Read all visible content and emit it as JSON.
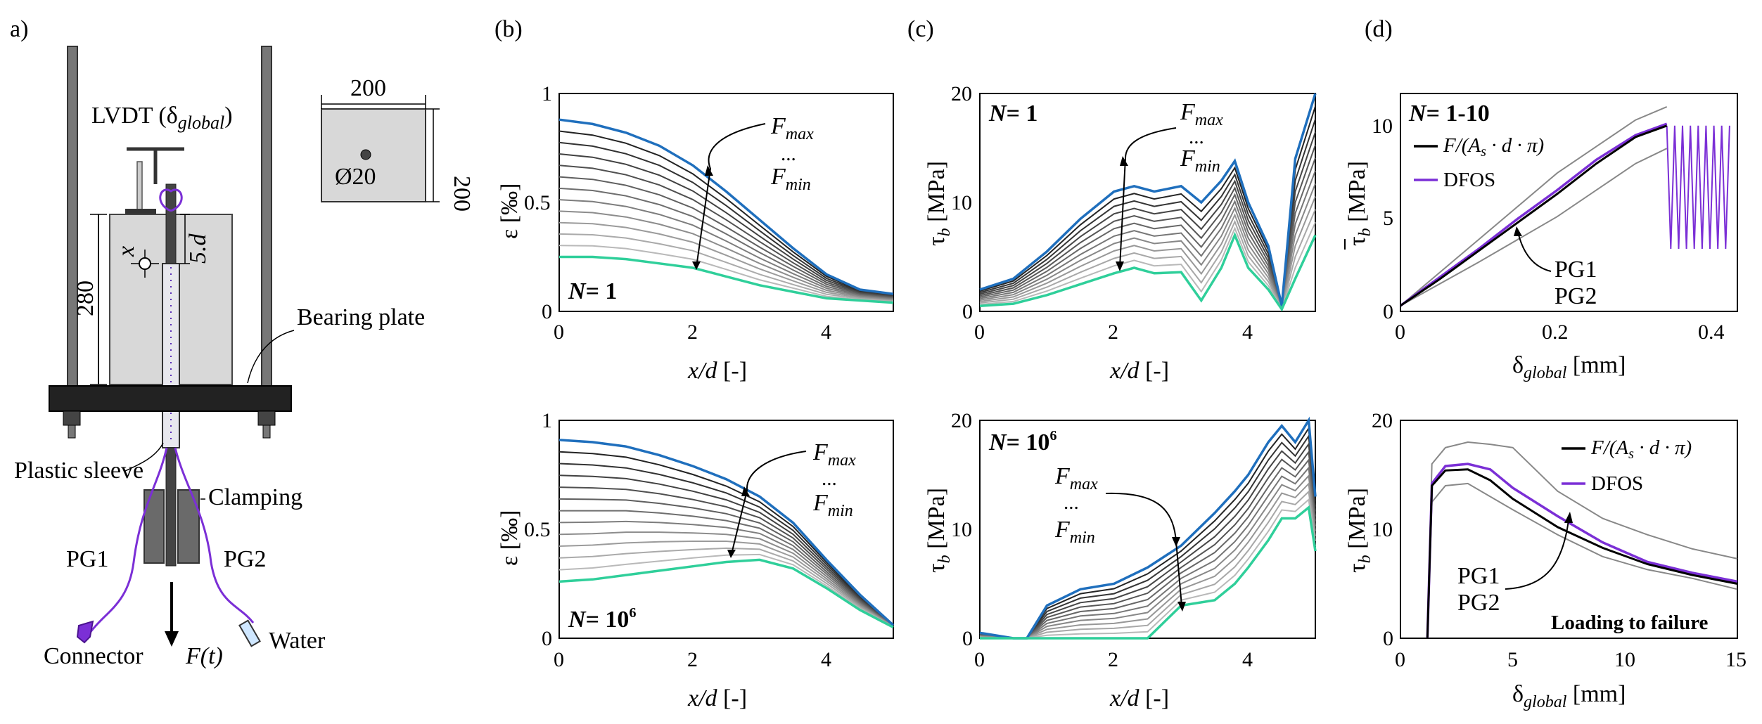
{
  "figure": {
    "panel_labels": {
      "a": "a)",
      "b": "(b)",
      "c": "(c)",
      "d": "(d)"
    },
    "setup": {
      "lvdt_label": "LVDT (δ",
      "lvdt_sub": "global",
      "lvdt_close": ")",
      "cross_section_width": "200",
      "cross_section_height": "200",
      "bar_diameter": "Ø20",
      "specimen_height": "280",
      "sensor_spacing": "5.d",
      "x_label": "x",
      "bearing_plate": "Bearing plate",
      "plastic_sleeve": "Plastic sleeve",
      "clamping": "Clamping",
      "pg1": "PG1",
      "pg2": "PG2",
      "connector": "Connector",
      "water": "Water",
      "force": "F(t)"
    },
    "common": {
      "xlabel_xd_main": "x/d",
      "xlabel_xd_unit": "[-]",
      "strain_ylabel_sym": "ε",
      "strain_ylabel_unit": "[‰]",
      "tau_ylabel_sym": "τ",
      "tau_ylabel_sub": "b",
      "tau_ylabel_unit": "[MPa]",
      "delta_xlabel_sym": "δ",
      "delta_xlabel_sub": "global",
      "delta_xlabel_unit": "[mm]",
      "fmax": "F",
      "fmax_sub": "max",
      "dots": "...",
      "fmin": "F",
      "fmin_sub": "min",
      "pg1": "PG1",
      "pg2": "PG2",
      "legend_formula": "F/(A",
      "legend_formula_s": "s",
      "legend_formula_rest": " · d · π)",
      "legend_dfos": "DFOS",
      "n1_prefix": "N",
      "n1_suffix": "= 1",
      "n1_10_suffix": "= 1-10",
      "n_1e6_suffix": "= 10",
      "n_1e6_exp": "6",
      "failure_note": "Loading to failure"
    },
    "colors": {
      "blue": "#1f6fbd",
      "green": "#2fcf9a",
      "purple": "#7b2fd6",
      "black": "#000000",
      "grey": "#888888"
    }
  },
  "chart_data": [
    {
      "id": "b_top",
      "type": "line",
      "title": "N= 1",
      "xlabel": "x/d [-]",
      "ylabel": "ε [‰]",
      "xlim": [
        0,
        5
      ],
      "ylim": [
        0,
        1
      ],
      "xticks": [
        "0",
        "2",
        "4"
      ],
      "yticks": [
        "0",
        "0.5",
        "1"
      ],
      "x": [
        0,
        0.5,
        1,
        1.5,
        2,
        2.5,
        3,
        3.5,
        4,
        4.5,
        5
      ],
      "series": [
        {
          "name": "F_max",
          "values": [
            0.88,
            0.86,
            0.82,
            0.76,
            0.67,
            0.55,
            0.42,
            0.29,
            0.17,
            0.1,
            0.08
          ]
        },
        {
          "name": "F_min",
          "values": [
            0.25,
            0.25,
            0.24,
            0.22,
            0.2,
            0.16,
            0.12,
            0.09,
            0.06,
            0.05,
            0.04
          ]
        }
      ],
      "intermediate_curves": 11,
      "annotation": "F_max ... F_min"
    },
    {
      "id": "b_bottom",
      "type": "line",
      "title": "N= 10^6",
      "xlabel": "x/d [-]",
      "ylabel": "ε [‰]",
      "xlim": [
        0,
        5
      ],
      "ylim": [
        0,
        1
      ],
      "xticks": [
        "0",
        "2",
        "4"
      ],
      "yticks": [
        "0",
        "0.5",
        "1"
      ],
      "x": [
        0,
        0.5,
        1,
        1.5,
        2,
        2.5,
        3,
        3.5,
        4,
        4.5,
        5
      ],
      "series": [
        {
          "name": "F_max",
          "values": [
            0.91,
            0.9,
            0.88,
            0.84,
            0.79,
            0.73,
            0.65,
            0.53,
            0.36,
            0.2,
            0.06
          ]
        },
        {
          "name": "F_min",
          "values": [
            0.26,
            0.27,
            0.29,
            0.31,
            0.33,
            0.35,
            0.36,
            0.32,
            0.23,
            0.13,
            0.05
          ]
        }
      ],
      "intermediate_curves": 11,
      "annotation": "F_max ... F_min"
    },
    {
      "id": "c_top",
      "type": "line",
      "title": "N= 1",
      "xlabel": "x/d [-]",
      "ylabel": "τb [MPa]",
      "xlim": [
        0,
        5
      ],
      "ylim": [
        0,
        20
      ],
      "xticks": [
        "0",
        "2",
        "4"
      ],
      "yticks": [
        "0",
        "10",
        "20"
      ],
      "x": [
        0,
        0.5,
        1,
        1.5,
        2,
        2.3,
        2.6,
        3,
        3.3,
        3.6,
        3.8,
        4.0,
        4.3,
        4.5,
        4.7,
        5
      ],
      "series": [
        {
          "name": "F_max",
          "values": [
            2,
            3,
            5.5,
            8.5,
            11,
            11.5,
            11,
            11.5,
            10,
            12,
            13.8,
            10,
            6,
            0.5,
            14,
            20
          ]
        },
        {
          "name": "F_min",
          "values": [
            0.5,
            0.7,
            1.5,
            2.5,
            3.5,
            4,
            3.5,
            3.6,
            1,
            4,
            7,
            4,
            2,
            0.2,
            3,
            7
          ]
        }
      ],
      "intermediate_curves": 10,
      "annotation": "F_max ... F_min"
    },
    {
      "id": "c_bottom",
      "type": "line",
      "title": "N= 10^6",
      "xlabel": "x/d [-]",
      "ylabel": "τb [MPa]",
      "xlim": [
        0,
        5
      ],
      "ylim": [
        0,
        20
      ],
      "xticks": [
        "0",
        "2",
        "4"
      ],
      "yticks": [
        "0",
        "10",
        "20"
      ],
      "x": [
        0,
        0.5,
        0.7,
        1,
        1.5,
        2,
        2.5,
        3,
        3.5,
        3.8,
        4,
        4.3,
        4.5,
        4.7,
        4.9,
        5
      ],
      "series": [
        {
          "name": "F_max",
          "values": [
            0.5,
            0,
            0,
            3,
            4.5,
            5,
            6.5,
            8.5,
            11.5,
            13.5,
            15,
            18,
            19.5,
            18,
            20,
            13
          ]
        },
        {
          "name": "F_min",
          "values": [
            0,
            0,
            0,
            0,
            0,
            0,
            0,
            3,
            3.5,
            5,
            6.5,
            9,
            11,
            11,
            12,
            8
          ]
        }
      ],
      "intermediate_curves": 10,
      "annotation": "F_max ... F_min"
    },
    {
      "id": "d_top",
      "type": "line",
      "title": "N= 1-10",
      "xlabel": "δglobal [mm]",
      "ylabel": "τ̄b [MPa]",
      "xlim": [
        0,
        0.43
      ],
      "ylim": [
        0,
        11.5
      ],
      "xticks": [
        "0",
        "0.2",
        "0.4"
      ],
      "yticks": [
        "0",
        "5",
        "10"
      ],
      "series": [
        {
          "name": "F/(As·d·π)",
          "x": [
            0,
            0.05,
            0.1,
            0.15,
            0.2,
            0.25,
            0.3,
            0.34
          ],
          "values": [
            0.3,
            1.7,
            3.2,
            4.7,
            6.2,
            7.8,
            9.2,
            9.8
          ]
        },
        {
          "name": "DFOS",
          "x": [
            0,
            0.05,
            0.1,
            0.15,
            0.2,
            0.25,
            0.3,
            0.34
          ],
          "values": [
            0.3,
            1.8,
            3.3,
            4.9,
            6.4,
            8.0,
            9.3,
            9.9
          ]
        },
        {
          "name": "PG1",
          "x": [
            0,
            0.1,
            0.2,
            0.3,
            0.34
          ],
          "values": [
            0.3,
            3.8,
            7.3,
            10.1,
            10.8
          ]
        },
        {
          "name": "PG2",
          "x": [
            0,
            0.1,
            0.2,
            0.3,
            0.34
          ],
          "values": [
            0.3,
            2.6,
            5.0,
            7.8,
            8.6
          ]
        }
      ],
      "cycles": {
        "x_range": [
          0.34,
          0.42
        ],
        "lower": 3.3,
        "upper": 9.8
      }
    },
    {
      "id": "d_bottom",
      "type": "line",
      "title": "Loading to failure",
      "xlabel": "δglobal [mm]",
      "ylabel": "τ̄b [MPa]",
      "xlim": [
        0,
        15
      ],
      "ylim": [
        0,
        20
      ],
      "xticks": [
        "0",
        "5",
        "10",
        "15"
      ],
      "yticks": [
        "0",
        "10",
        "20"
      ],
      "series": [
        {
          "name": "F/(As·d·π)",
          "x": [
            1.2,
            1.4,
            2,
            3,
            4,
            5,
            7,
            9,
            11,
            13,
            15
          ],
          "values": [
            0,
            14,
            15.4,
            15.5,
            14.5,
            12.8,
            10.2,
            8.3,
            6.8,
            5.8,
            5.0
          ]
        },
        {
          "name": "DFOS",
          "x": [
            1.2,
            1.4,
            2,
            3,
            4,
            5,
            7,
            9,
            11,
            13,
            15
          ],
          "values": [
            0,
            14.2,
            15.8,
            16,
            15.5,
            13.8,
            11.2,
            8.8,
            7.0,
            6.0,
            5.2
          ]
        },
        {
          "name": "PG1",
          "x": [
            1.2,
            1.4,
            2,
            3,
            4,
            5,
            7,
            9,
            11,
            13,
            15
          ],
          "values": [
            0,
            16,
            17.5,
            18,
            17.8,
            17.5,
            13.5,
            11,
            9.5,
            8.2,
            7.3
          ]
        },
        {
          "name": "PG2",
          "x": [
            1.2,
            1.4,
            2,
            3,
            4,
            5,
            7,
            9,
            11,
            13,
            15
          ],
          "values": [
            0,
            12.5,
            14,
            14.2,
            13,
            11.8,
            9.5,
            7.5,
            6.3,
            5.5,
            4.5
          ]
        }
      ]
    }
  ]
}
